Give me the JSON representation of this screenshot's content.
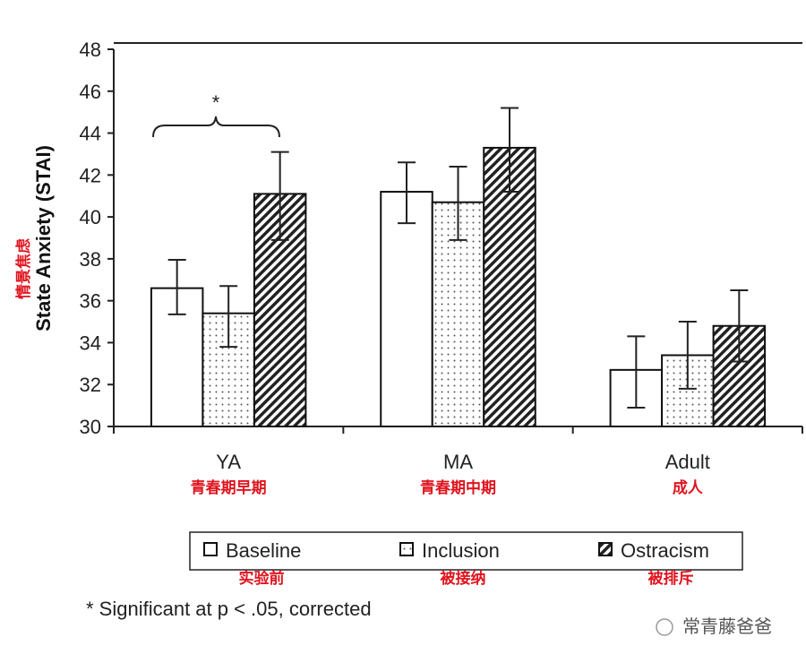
{
  "chart_data": {
    "type": "bar",
    "ylabel": "State Anxiety (STAI)",
    "ylabel_cn": "情景焦虑",
    "ylim": [
      30,
      48
    ],
    "yticks": [
      30,
      32,
      34,
      36,
      38,
      40,
      42,
      44,
      46,
      48
    ],
    "categories": [
      "YA",
      "MA",
      "Adult"
    ],
    "categories_cn": [
      "青春期早期",
      "青春期中期",
      "成人"
    ],
    "series": [
      {
        "name": "Baseline",
        "name_cn": "实验前",
        "fill": "white",
        "values": [
          36.6,
          41.2,
          32.7
        ],
        "err_low": [
          35.35,
          39.7,
          30.9
        ],
        "err_high": [
          37.95,
          42.6,
          34.3
        ]
      },
      {
        "name": "Inclusion",
        "name_cn": "被接纳",
        "fill": "dots",
        "values": [
          35.4,
          40.7,
          33.4
        ],
        "err_low": [
          33.8,
          38.9,
          31.8
        ],
        "err_high": [
          36.7,
          42.4,
          35.0
        ]
      },
      {
        "name": "Ostracism",
        "name_cn": "被排斥",
        "fill": "hatch",
        "values": [
          41.1,
          43.3,
          34.8
        ],
        "err_low": [
          38.9,
          41.2,
          33.1
        ],
        "err_high": [
          43.1,
          45.2,
          36.5
        ]
      }
    ],
    "annotation": {
      "symbol": "*",
      "group": "YA",
      "between": [
        "Baseline",
        "Ostracism"
      ]
    },
    "footnote": "* Significant at p < .05, corrected",
    "legend_position": "bottom",
    "grid": false
  },
  "watermark": "常青藤爸爸",
  "colors": {
    "annotation_cn": "#e0141e",
    "axis": "#222222"
  }
}
